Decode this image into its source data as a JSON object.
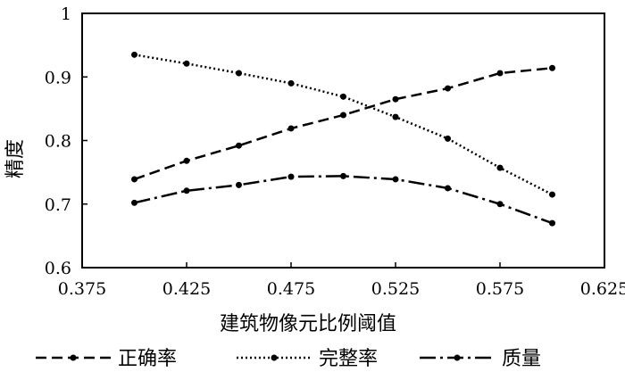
{
  "chart_data": {
    "type": "line",
    "title": "",
    "xlabel": "建筑物像元比例阈值",
    "ylabel": "精度",
    "xlim": [
      0.375,
      0.625
    ],
    "ylim": [
      0.6,
      1.0
    ],
    "xticks": [
      "0.375",
      "0.425",
      "0.475",
      "0.525",
      "0.575",
      "0.625"
    ],
    "yticks": [
      "0.6",
      "0.7",
      "0.8",
      "0.9",
      "1"
    ],
    "grid": false,
    "legend_position": "bottom",
    "x": [
      0.4,
      0.425,
      0.45,
      0.475,
      0.5,
      0.525,
      0.55,
      0.575,
      0.6
    ],
    "series": [
      {
        "name": "正确率",
        "dash": "dashed",
        "values": [
          0.739,
          0.768,
          0.792,
          0.819,
          0.84,
          0.865,
          0.882,
          0.906,
          0.914
        ]
      },
      {
        "name": "完整率",
        "dash": "dotted",
        "values": [
          0.935,
          0.921,
          0.906,
          0.89,
          0.869,
          0.837,
          0.803,
          0.757,
          0.715
        ]
      },
      {
        "name": "质量",
        "dash": "dashdot",
        "values": [
          0.702,
          0.721,
          0.73,
          0.743,
          0.744,
          0.739,
          0.725,
          0.7,
          0.67
        ]
      }
    ]
  }
}
